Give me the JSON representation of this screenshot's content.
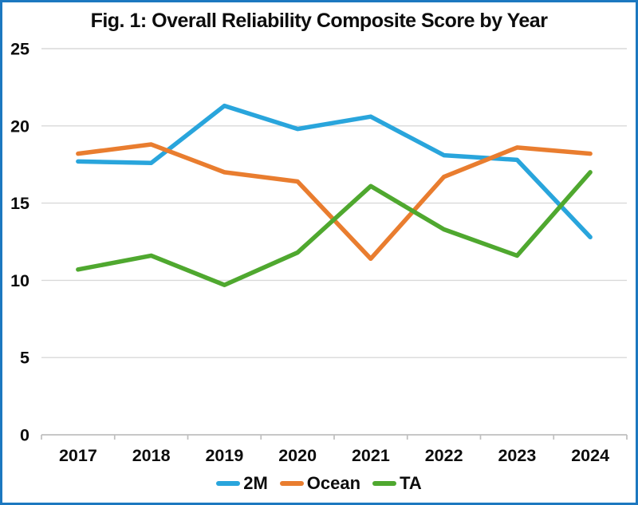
{
  "colors": {
    "border": "#1C78C0",
    "grid": "#D9D9D9",
    "axis": "#BFBFBF",
    "text": "#0d0d0d"
  },
  "chart_data": {
    "type": "line",
    "title": "Fig. 1: Overall Reliability Composite Score by Year",
    "categories": [
      "2017",
      "2018",
      "2019",
      "2020",
      "2021",
      "2022",
      "2023",
      "2024"
    ],
    "series": [
      {
        "name": "2M",
        "color": "#29A5DC",
        "values": [
          17.7,
          17.6,
          21.3,
          19.8,
          20.6,
          18.1,
          17.8,
          12.8
        ]
      },
      {
        "name": "Ocean",
        "color": "#E97D2F",
        "values": [
          18.2,
          18.8,
          17.0,
          16.4,
          11.4,
          16.7,
          18.6,
          18.2
        ]
      },
      {
        "name": "TA",
        "color": "#4FA82F",
        "values": [
          10.7,
          11.6,
          9.7,
          11.8,
          16.1,
          13.3,
          11.6,
          17.0
        ]
      }
    ],
    "xlabel": "",
    "ylabel": "",
    "ylim": [
      0,
      25
    ],
    "ytick_interval": 5,
    "grid": "horizontal",
    "legend_position": "bottom"
  }
}
